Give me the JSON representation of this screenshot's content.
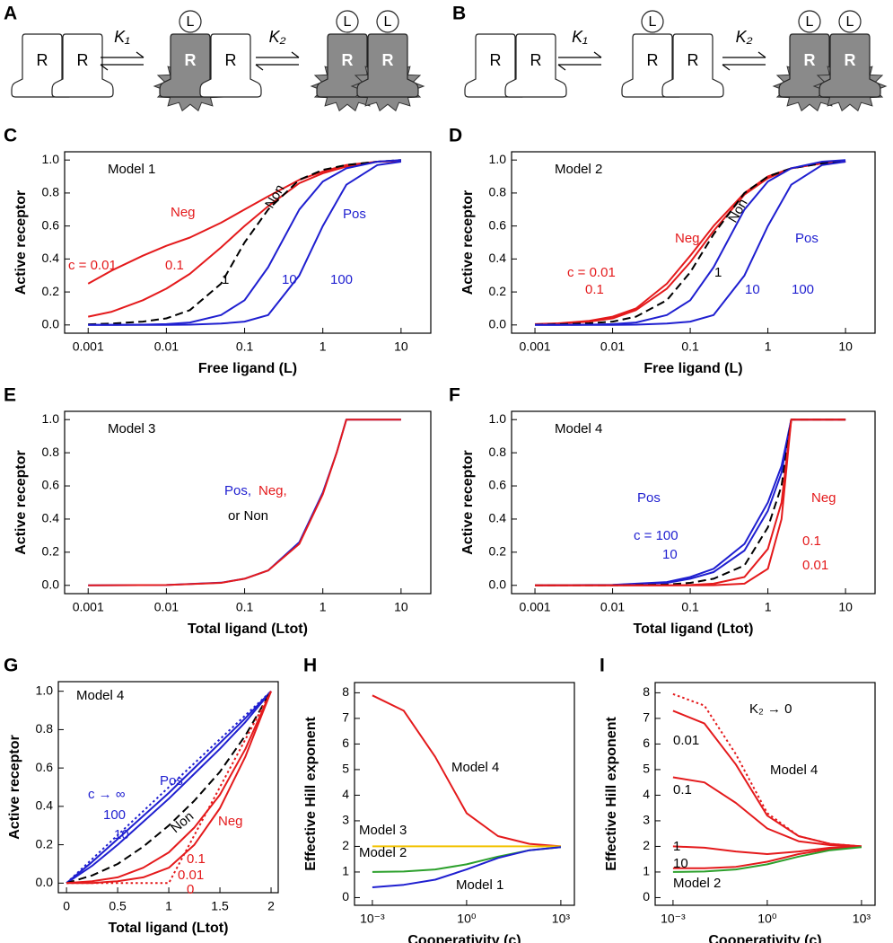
{
  "diagrams": [
    {
      "panel": "A",
      "receptor": "R",
      "ligand": "L",
      "k1": "K₁",
      "k2": "K₂"
    },
    {
      "panel": "B",
      "receptor": "R",
      "ligand": "L",
      "k1": "K₁",
      "k2": "K₂"
    }
  ],
  "chart_data": [
    {
      "panel": "C",
      "type": "line",
      "xlabel": "Free ligand (L)",
      "ylabel": "Active receptor",
      "xscale": "log",
      "xlim": [
        0.0005,
        24
      ],
      "ylim": [
        -0.05,
        1.05
      ],
      "xticks": [
        0.001,
        0.01,
        0.1,
        1,
        10
      ],
      "yticks": [
        {
          "value": 0,
          "label": "0.0"
        },
        0.2,
        0.4,
        0.6,
        0.8,
        {
          "value": 1,
          "label": "1.0"
        }
      ],
      "x": [
        0.001,
        0.002,
        0.005,
        0.01,
        0.02,
        0.05,
        0.1,
        0.2,
        0.5,
        1,
        2,
        5,
        10
      ],
      "series": [
        {
          "color": "#e41a1c",
          "dash": "solid",
          "values": [
            0.25,
            0.33,
            0.42,
            0.48,
            0.53,
            0.62,
            0.7,
            0.78,
            0.88,
            0.93,
            0.97,
            0.99,
            0.995
          ]
        },
        {
          "color": "#e41a1c",
          "dash": "solid",
          "values": [
            0.05,
            0.08,
            0.15,
            0.22,
            0.31,
            0.47,
            0.6,
            0.72,
            0.86,
            0.92,
            0.96,
            0.99,
            0.995
          ]
        },
        {
          "color": "#000000",
          "dash": "dashed",
          "values": [
            0.004,
            0.008,
            0.02,
            0.04,
            0.09,
            0.25,
            0.5,
            0.7,
            0.88,
            0.94,
            0.97,
            0.99,
            1
          ]
        },
        {
          "color": "#1f1fd0",
          "dash": "solid",
          "values": [
            0,
            0,
            0.002,
            0.005,
            0.015,
            0.06,
            0.15,
            0.35,
            0.7,
            0.87,
            0.95,
            0.99,
            1
          ]
        },
        {
          "color": "#1f1fd0",
          "dash": "solid",
          "values": [
            0,
            0,
            0,
            0,
            0.002,
            0.008,
            0.02,
            0.06,
            0.3,
            0.6,
            0.85,
            0.97,
            0.99
          ]
        }
      ],
      "annotations": [
        {
          "text": "Model 1",
          "color": "#000000"
        },
        {
          "text": "Neg",
          "color": "#e41a1c"
        },
        {
          "text": "Non",
          "color": "#000000"
        },
        {
          "text": "Pos",
          "color": "#1f1fd0"
        },
        {
          "text": "c = 0.01",
          "color": "#e41a1c"
        },
        {
          "text": "0.1",
          "color": "#e41a1c"
        },
        {
          "text": "1",
          "color": "#000000"
        },
        {
          "text": "10",
          "color": "#1f1fd0"
        },
        {
          "text": "100",
          "color": "#1f1fd0"
        }
      ]
    },
    {
      "panel": "D",
      "type": "line",
      "xlabel": "Free ligand (L)",
      "ylabel": "Active receptor",
      "xscale": "log",
      "xlim": [
        0.0005,
        24
      ],
      "ylim": [
        -0.05,
        1.05
      ],
      "xticks": [
        0.001,
        0.01,
        0.1,
        1,
        10
      ],
      "yticks": [
        {
          "value": 0,
          "label": "0.0"
        },
        0.2,
        0.4,
        0.6,
        0.8,
        {
          "value": 1,
          "label": "1.0"
        }
      ],
      "x": [
        0.001,
        0.002,
        0.005,
        0.01,
        0.02,
        0.05,
        0.1,
        0.2,
        0.5,
        1,
        2,
        5,
        10
      ],
      "series": [
        {
          "color": "#e41a1c",
          "dash": "solid",
          "values": [
            0.005,
            0.01,
            0.025,
            0.05,
            0.1,
            0.25,
            0.42,
            0.6,
            0.8,
            0.9,
            0.95,
            0.98,
            0.99
          ]
        },
        {
          "color": "#e41a1c",
          "dash": "solid",
          "values": [
            0.004,
            0.008,
            0.02,
            0.04,
            0.09,
            0.22,
            0.38,
            0.57,
            0.79,
            0.89,
            0.95,
            0.98,
            0.99
          ]
        },
        {
          "color": "#000000",
          "dash": "dashed",
          "values": [
            0.002,
            0.004,
            0.01,
            0.02,
            0.05,
            0.15,
            0.32,
            0.55,
            0.8,
            0.9,
            0.95,
            0.98,
            0.99
          ]
        },
        {
          "color": "#1f1fd0",
          "dash": "solid",
          "values": [
            0,
            0,
            0.002,
            0.005,
            0.015,
            0.06,
            0.15,
            0.35,
            0.7,
            0.87,
            0.95,
            0.99,
            1
          ]
        },
        {
          "color": "#1f1fd0",
          "dash": "solid",
          "values": [
            0,
            0,
            0,
            0,
            0.002,
            0.008,
            0.02,
            0.06,
            0.3,
            0.6,
            0.85,
            0.97,
            0.99
          ]
        }
      ],
      "annotations": [
        {
          "text": "Model 2",
          "color": "#000000"
        },
        {
          "text": "Neg",
          "color": "#e41a1c"
        },
        {
          "text": "Non",
          "color": "#000000"
        },
        {
          "text": "Pos",
          "color": "#1f1fd0"
        },
        {
          "text": "c = 0.01",
          "color": "#e41a1c"
        },
        {
          "text": "0.1",
          "color": "#e41a1c"
        },
        {
          "text": "1",
          "color": "#000000"
        },
        {
          "text": "10",
          "color": "#1f1fd0"
        },
        {
          "text": "100",
          "color": "#1f1fd0"
        }
      ]
    },
    {
      "panel": "E",
      "type": "line",
      "xlabel": "Total ligand (Ltot)",
      "ylabel": "Active receptor",
      "xscale": "log",
      "xlim": [
        0.0005,
        24
      ],
      "ylim": [
        -0.05,
        1.05
      ],
      "xticks": [
        0.001,
        0.01,
        0.1,
        1,
        10
      ],
      "yticks": [
        {
          "value": 0,
          "label": "0.0"
        },
        0.2,
        0.4,
        0.6,
        0.8,
        {
          "value": 1,
          "label": "1.0"
        }
      ],
      "x": [
        0.001,
        0.01,
        0.05,
        0.1,
        0.2,
        0.5,
        1,
        1.5,
        2,
        5,
        10
      ],
      "series": [
        {
          "color": "#1f1fd0",
          "dash": "solid",
          "values": [
            0,
            0.002,
            0.016,
            0.04,
            0.09,
            0.26,
            0.56,
            0.8,
            1,
            1,
            1
          ]
        },
        {
          "color": "#e41a1c",
          "dash": "solid",
          "values": [
            0,
            0.002,
            0.015,
            0.04,
            0.09,
            0.25,
            0.55,
            0.8,
            1,
            1,
            1
          ]
        }
      ],
      "annotations": [
        {
          "text": "Model 3",
          "color": "#000000"
        },
        {
          "text": "Pos,",
          "color": "#1f1fd0"
        },
        {
          "text": "Neg,",
          "color": "#e41a1c"
        },
        {
          "text": "or Non",
          "color": "#000000"
        }
      ]
    },
    {
      "panel": "F",
      "type": "line",
      "xlabel": "Total ligand (Ltot)",
      "ylabel": "Active receptor",
      "xscale": "log",
      "xlim": [
        0.0005,
        24
      ],
      "ylim": [
        -0.05,
        1.05
      ],
      "xticks": [
        0.001,
        0.01,
        0.1,
        1,
        10
      ],
      "yticks": [
        {
          "value": 0,
          "label": "0.0"
        },
        0.2,
        0.4,
        0.6,
        0.8,
        {
          "value": 1,
          "label": "1.0"
        }
      ],
      "x": [
        0.001,
        0.01,
        0.05,
        0.1,
        0.2,
        0.5,
        1,
        1.5,
        2,
        5,
        10
      ],
      "series": [
        {
          "color": "#1f1fd0",
          "dash": "solid",
          "values": [
            0,
            0.003,
            0.02,
            0.05,
            0.1,
            0.25,
            0.5,
            0.72,
            1,
            1,
            1
          ]
        },
        {
          "color": "#1f1fd0",
          "dash": "solid",
          "values": [
            0,
            0.002,
            0.015,
            0.04,
            0.08,
            0.21,
            0.45,
            0.68,
            1,
            1,
            1
          ]
        },
        {
          "color": "#000000",
          "dash": "dashed",
          "values": [
            0,
            0,
            0.005,
            0.015,
            0.04,
            0.12,
            0.35,
            0.6,
            1,
            1,
            1
          ]
        },
        {
          "color": "#e41a1c",
          "dash": "solid",
          "values": [
            0,
            0,
            0,
            0.002,
            0.01,
            0.05,
            0.22,
            0.5,
            1,
            1,
            1
          ]
        },
        {
          "color": "#e41a1c",
          "dash": "solid",
          "values": [
            0,
            0,
            0,
            0,
            0.001,
            0.01,
            0.1,
            0.4,
            1,
            1,
            1
          ]
        }
      ],
      "annotations": [
        {
          "text": "Model 4",
          "color": "#000000"
        },
        {
          "text": "Pos",
          "color": "#1f1fd0"
        },
        {
          "text": "Neg",
          "color": "#e41a1c"
        },
        {
          "text": "c = 100",
          "color": "#1f1fd0"
        },
        {
          "text": "10",
          "color": "#1f1fd0"
        },
        {
          "text": "0.1",
          "color": "#e41a1c"
        },
        {
          "text": "0.01",
          "color": "#e41a1c"
        }
      ]
    },
    {
      "panel": "G",
      "type": "line",
      "xlabel": "Total ligand (Ltot)",
      "ylabel": "Active receptor",
      "xscale": "linear",
      "xlim": [
        -0.08,
        2.07
      ],
      "ylim": [
        -0.05,
        1.05
      ],
      "xticks": [
        0,
        0.5,
        1,
        1.5,
        2
      ],
      "yticks": [
        {
          "value": 0,
          "label": "0.0"
        },
        0.2,
        0.4,
        0.6,
        0.8,
        {
          "value": 1,
          "label": "1.0"
        }
      ],
      "x": [
        0,
        0.25,
        0.5,
        0.75,
        1,
        1.25,
        1.5,
        1.75,
        2
      ],
      "series": [
        {
          "color": "#1f1fd0",
          "dash": "dotted",
          "values": [
            0,
            0.125,
            0.25,
            0.375,
            0.5,
            0.625,
            0.75,
            0.875,
            1
          ]
        },
        {
          "color": "#1f1fd0",
          "dash": "solid",
          "values": [
            0,
            0.11,
            0.23,
            0.35,
            0.47,
            0.6,
            0.73,
            0.86,
            1
          ]
        },
        {
          "color": "#1f1fd0",
          "dash": "solid",
          "values": [
            0,
            0.09,
            0.2,
            0.32,
            0.44,
            0.57,
            0.7,
            0.84,
            1
          ]
        },
        {
          "color": "#000000",
          "dash": "dashed",
          "values": [
            0,
            0.04,
            0.1,
            0.19,
            0.3,
            0.43,
            0.58,
            0.77,
            1
          ]
        },
        {
          "color": "#e41a1c",
          "dash": "solid",
          "values": [
            0,
            0.01,
            0.03,
            0.08,
            0.16,
            0.29,
            0.46,
            0.7,
            1
          ]
        },
        {
          "color": "#e41a1c",
          "dash": "solid",
          "values": [
            0,
            0,
            0.01,
            0.03,
            0.08,
            0.2,
            0.39,
            0.66,
            1
          ]
        },
        {
          "color": "#e41a1c",
          "dash": "dotted",
          "values": [
            0,
            0,
            0,
            0,
            0,
            0.25,
            0.5,
            0.75,
            1
          ]
        }
      ],
      "annotations": [
        {
          "text": "Model 4",
          "color": "#000000"
        },
        {
          "text": "Pos",
          "color": "#1f1fd0"
        },
        {
          "text": "c → ∞",
          "color": "#1f1fd0"
        },
        {
          "text": "100",
          "color": "#1f1fd0"
        },
        {
          "text": "10",
          "color": "#1f1fd0"
        },
        {
          "text": "Non",
          "color": "#000000"
        },
        {
          "text": "Neg",
          "color": "#e41a1c"
        },
        {
          "text": "0.1",
          "color": "#e41a1c"
        },
        {
          "text": "0.01",
          "color": "#e41a1c"
        },
        {
          "text": "0",
          "color": "#e41a1c"
        }
      ]
    },
    {
      "panel": "H",
      "type": "line",
      "xlabel": "Cooperativity (c)",
      "ylabel": "Effective Hill exponent",
      "xscale": "log",
      "xlim": [
        0.00027,
        2700
      ],
      "ylim": [
        -0.3,
        8.4
      ],
      "xticks": [
        {
          "value": 0.001,
          "label": "10⁻³"
        },
        {
          "value": 1,
          "label": "10⁰"
        },
        {
          "value": 1000,
          "label": "10³"
        }
      ],
      "yticks": [
        0,
        1,
        2,
        3,
        4,
        5,
        6,
        7,
        8
      ],
      "x": [
        0.001,
        0.01,
        0.1,
        1,
        10,
        100,
        1000
      ],
      "series": [
        {
          "color": "#e41a1c",
          "dash": "solid",
          "values": [
            7.9,
            7.3,
            5.5,
            3.3,
            2.4,
            2.1,
            2.0
          ]
        },
        {
          "color": "#f2c200",
          "dash": "solid",
          "values": [
            2,
            2,
            2,
            2,
            2,
            2,
            2
          ]
        },
        {
          "color": "#2ca02c",
          "dash": "solid",
          "values": [
            1,
            1.02,
            1.1,
            1.3,
            1.6,
            1.85,
            1.97
          ]
        },
        {
          "color": "#1f1fd0",
          "dash": "solid",
          "values": [
            0.4,
            0.5,
            0.7,
            1.1,
            1.55,
            1.85,
            1.97
          ]
        }
      ],
      "annotations": [
        {
          "text": "Model 4",
          "color": "#000000"
        },
        {
          "text": "Model 3",
          "color": "#000000"
        },
        {
          "text": "Model 2",
          "color": "#000000"
        },
        {
          "text": "Model 1",
          "color": "#000000"
        }
      ]
    },
    {
      "panel": "I",
      "type": "line",
      "xlabel": "Cooperativity (c)",
      "ylabel": "Effective Hill exponent",
      "xscale": "log",
      "xlim": [
        0.00027,
        2700
      ],
      "ylim": [
        -0.3,
        8.4
      ],
      "xticks": [
        {
          "value": 0.001,
          "label": "10⁻³"
        },
        {
          "value": 1,
          "label": "10⁰"
        },
        {
          "value": 1000,
          "label": "10³"
        }
      ],
      "yticks": [
        0,
        1,
        2,
        3,
        4,
        5,
        6,
        7,
        8
      ],
      "x": [
        0.001,
        0.01,
        0.1,
        1,
        10,
        100,
        1000
      ],
      "series": [
        {
          "color": "#e41a1c",
          "dash": "dotted",
          "values": [
            7.95,
            7.5,
            5.6,
            3.3,
            2.4,
            2.1,
            2.0
          ]
        },
        {
          "color": "#e41a1c",
          "dash": "solid",
          "values": [
            7.3,
            6.8,
            5.2,
            3.2,
            2.4,
            2.1,
            2.0
          ]
        },
        {
          "color": "#e41a1c",
          "dash": "solid",
          "values": [
            4.7,
            4.5,
            3.7,
            2.7,
            2.2,
            2.05,
            2.0
          ]
        },
        {
          "color": "#e41a1c",
          "dash": "solid",
          "values": [
            2,
            1.95,
            1.8,
            1.7,
            1.8,
            1.95,
            2.0
          ]
        },
        {
          "color": "#e41a1c",
          "dash": "solid",
          "values": [
            1.15,
            1.15,
            1.2,
            1.4,
            1.7,
            1.9,
            1.98
          ]
        },
        {
          "color": "#2ca02c",
          "dash": "solid",
          "values": [
            1,
            1.02,
            1.1,
            1.3,
            1.6,
            1.85,
            1.97
          ]
        }
      ],
      "annotations": [
        {
          "text": "K₂ → 0",
          "color": "#000000"
        },
        {
          "text": "0.01",
          "color": "#000000"
        },
        {
          "text": "Model 4",
          "color": "#000000"
        },
        {
          "text": "0.1",
          "color": "#000000"
        },
        {
          "text": "1",
          "color": "#000000"
        },
        {
          "text": "10",
          "color": "#000000"
        },
        {
          "text": "Model 2",
          "color": "#000000"
        }
      ]
    }
  ]
}
